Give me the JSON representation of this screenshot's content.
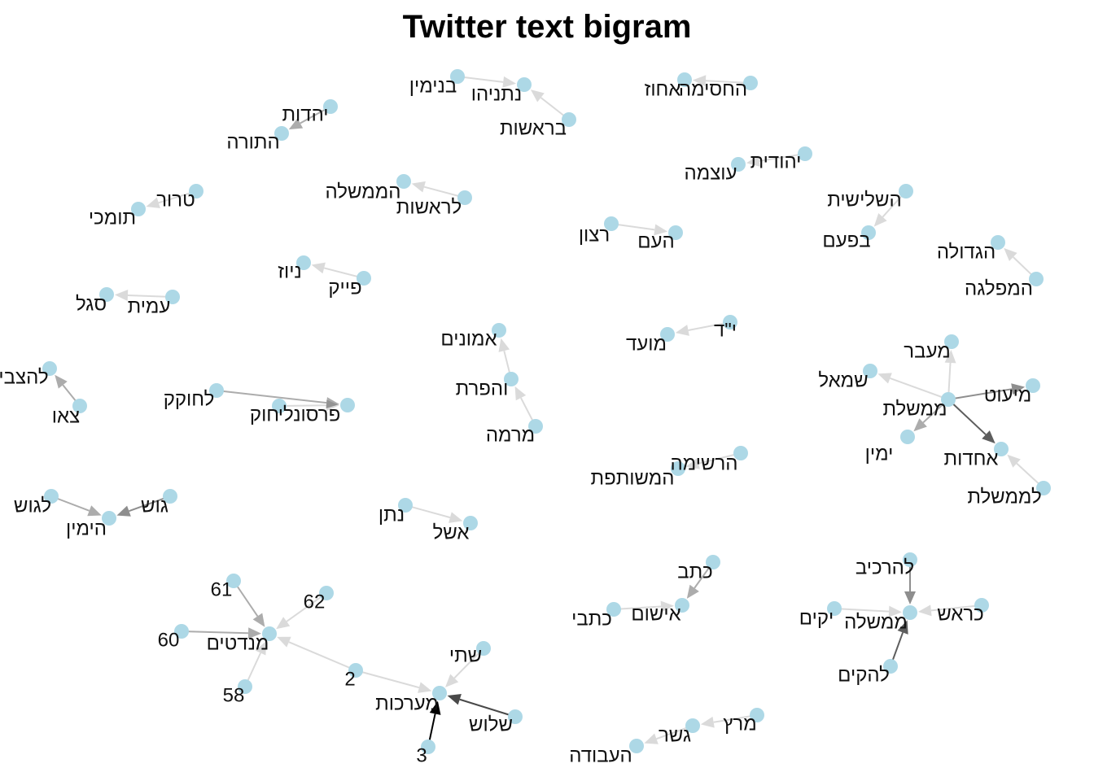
{
  "title": "Twitter text bigram",
  "node_color": "#add8e6",
  "nodes": [
    {
      "id": "binyamin",
      "label": "בנימין"
    },
    {
      "id": "netanyahu",
      "label": "נתניהו"
    },
    {
      "id": "berosh",
      "label": "בראשות"
    },
    {
      "id": "hahasima",
      "label": "החסימה"
    },
    {
      "id": "ahuz",
      "label": "אחוז"
    },
    {
      "id": "yahadut",
      "label": "יהדות"
    },
    {
      "id": "hatora",
      "label": "התורה"
    },
    {
      "id": "yehudit",
      "label": "יהודית"
    },
    {
      "id": "otzma",
      "label": "עוצמה"
    },
    {
      "id": "terror",
      "label": "טרור"
    },
    {
      "id": "tomchei",
      "label": "תומכי"
    },
    {
      "id": "lerosh",
      "label": "לראשות"
    },
    {
      "id": "hamemshala",
      "label": "הממשלה"
    },
    {
      "id": "shlishit",
      "label": "השלישית"
    },
    {
      "id": "bepaam",
      "label": "בפעם"
    },
    {
      "id": "ratzon",
      "label": "רצון"
    },
    {
      "id": "haam",
      "label": "העם"
    },
    {
      "id": "hamiflaga",
      "label": "המפלגה"
    },
    {
      "id": "hagdola",
      "label": "הגדולה"
    },
    {
      "id": "peik",
      "label": "פייק"
    },
    {
      "id": "nyuz",
      "label": "ניוז"
    },
    {
      "id": "amit",
      "label": "עמית"
    },
    {
      "id": "segal",
      "label": "סגל"
    },
    {
      "id": "emunim",
      "label": "אמונים"
    },
    {
      "id": "vehafarat",
      "label": "והפרת"
    },
    {
      "id": "mirma",
      "label": "מרמה"
    },
    {
      "id": "yud",
      "label": "י\"ד"
    },
    {
      "id": "moed",
      "label": "מועד"
    },
    {
      "id": "maavar",
      "label": "מעבר"
    },
    {
      "id": "smol",
      "label": "שמאל"
    },
    {
      "id": "miut",
      "label": "מיעוט"
    },
    {
      "id": "memshelet",
      "label": "ממשלת"
    },
    {
      "id": "yamin",
      "label": "ימין"
    },
    {
      "id": "ahdut",
      "label": "אחדות"
    },
    {
      "id": "lememshelet",
      "label": "לממשלת"
    },
    {
      "id": "lehatzbia",
      "label": "להצביע"
    },
    {
      "id": "tzeu",
      "label": "צאו"
    },
    {
      "id": "lahokek",
      "label": "לחוקק"
    },
    {
      "id": "personali",
      "label": "פרסונלי"
    },
    {
      "id": "hok",
      "label": "חוק"
    },
    {
      "id": "hareshima",
      "label": "הרשימה"
    },
    {
      "id": "hameshutefet",
      "label": "המשותפת"
    },
    {
      "id": "lagush",
      "label": "לגוש"
    },
    {
      "id": "gush",
      "label": "גוש"
    },
    {
      "id": "hayamin",
      "label": "הימין"
    },
    {
      "id": "natan",
      "label": "נתן"
    },
    {
      "id": "eshel",
      "label": "אשל"
    },
    {
      "id": "katav",
      "label": "כתב"
    },
    {
      "id": "ishum",
      "label": "אישום"
    },
    {
      "id": "ktavei",
      "label": "כתבי"
    },
    {
      "id": "leharkiv",
      "label": "להרכיב"
    },
    {
      "id": "yakim",
      "label": "יקים"
    },
    {
      "id": "memshala",
      "label": "ממשלה"
    },
    {
      "id": "kerosh",
      "label": "כראש"
    },
    {
      "id": "lehakim",
      "label": "להקים"
    },
    {
      "id": "n61",
      "label": "61"
    },
    {
      "id": "n62",
      "label": "62"
    },
    {
      "id": "n60",
      "label": "60"
    },
    {
      "id": "mandatim",
      "label": "מנדטים"
    },
    {
      "id": "n58",
      "label": "58"
    },
    {
      "id": "n2",
      "label": "2"
    },
    {
      "id": "shtei",
      "label": "שתי"
    },
    {
      "id": "maarachot",
      "label": "מערכות"
    },
    {
      "id": "shalosh",
      "label": "שלוש"
    },
    {
      "id": "n3",
      "label": "3"
    },
    {
      "id": "meretz",
      "label": "מרץ"
    },
    {
      "id": "gesher",
      "label": "גשר"
    },
    {
      "id": "haavoda",
      "label": "העבודה"
    }
  ],
  "edges": [
    {
      "from": "binyamin",
      "to": "netanyahu",
      "n": 1
    },
    {
      "from": "berosh",
      "to": "netanyahu",
      "n": 1
    },
    {
      "from": "hahasima",
      "to": "ahuz",
      "n": 1
    },
    {
      "from": "yahadut",
      "to": "hatora",
      "n": 2
    },
    {
      "from": "yehudit",
      "to": "otzma",
      "n": 1
    },
    {
      "from": "terror",
      "to": "tomchei",
      "n": 1
    },
    {
      "from": "lerosh",
      "to": "hamemshala",
      "n": 1
    },
    {
      "from": "shlishit",
      "to": "bepaam",
      "n": 1
    },
    {
      "from": "ratzon",
      "to": "haam",
      "n": 1
    },
    {
      "from": "hamiflaga",
      "to": "hagdola",
      "n": 1
    },
    {
      "from": "peik",
      "to": "nyuz",
      "n": 1
    },
    {
      "from": "amit",
      "to": "segal",
      "n": 1
    },
    {
      "from": "vehafarat",
      "to": "emunim",
      "n": 1
    },
    {
      "from": "mirma",
      "to": "vehafarat",
      "n": 1
    },
    {
      "from": "yud",
      "to": "moed",
      "n": 1
    },
    {
      "from": "memshelet",
      "to": "maavar",
      "n": 1
    },
    {
      "from": "memshelet",
      "to": "smol",
      "n": 1
    },
    {
      "from": "memshelet",
      "to": "miut",
      "n": 3
    },
    {
      "from": "memshelet",
      "to": "yamin",
      "n": 2
    },
    {
      "from": "memshelet",
      "to": "ahdut",
      "n": 5
    },
    {
      "from": "lememshelet",
      "to": "ahdut",
      "n": 1
    },
    {
      "from": "tzeu",
      "to": "lehatzbia",
      "n": 2
    },
    {
      "from": "lahokek",
      "to": "personali",
      "n": 2
    },
    {
      "from": "hok",
      "to": "personali",
      "n": 1
    },
    {
      "from": "hareshima",
      "to": "hameshutefet",
      "n": 1
    },
    {
      "from": "lagush",
      "to": "hayamin",
      "n": 2
    },
    {
      "from": "gush",
      "to": "hayamin",
      "n": 3
    },
    {
      "from": "natan",
      "to": "eshel",
      "n": 1
    },
    {
      "from": "katav",
      "to": "ishum",
      "n": 2
    },
    {
      "from": "ktavei",
      "to": "ishum",
      "n": 1
    },
    {
      "from": "leharkiv",
      "to": "memshala",
      "n": 3
    },
    {
      "from": "yakim",
      "to": "memshala",
      "n": 1
    },
    {
      "from": "kerosh",
      "to": "memshala",
      "n": 1
    },
    {
      "from": "lehakim",
      "to": "memshala",
      "n": 5
    },
    {
      "from": "n61",
      "to": "mandatim",
      "n": 2
    },
    {
      "from": "n62",
      "to": "mandatim",
      "n": 1
    },
    {
      "from": "n60",
      "to": "mandatim",
      "n": 2
    },
    {
      "from": "n58",
      "to": "mandatim",
      "n": 1
    },
    {
      "from": "n2",
      "to": "mandatim",
      "n": 1
    },
    {
      "from": "n2",
      "to": "maarachot",
      "n": 1
    },
    {
      "from": "shtei",
      "to": "maarachot",
      "n": 1
    },
    {
      "from": "shalosh",
      "to": "maarachot",
      "n": 6
    },
    {
      "from": "n3",
      "to": "maarachot",
      "n": 10
    },
    {
      "from": "meretz",
      "to": "gesher",
      "n": 1
    },
    {
      "from": "gesher",
      "to": "haavoda",
      "n": 1
    }
  ]
}
